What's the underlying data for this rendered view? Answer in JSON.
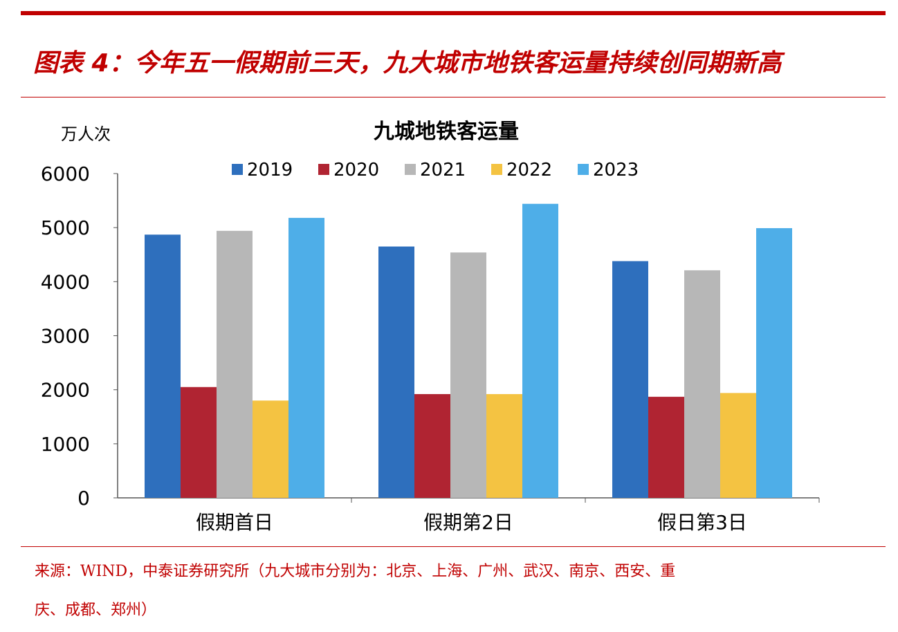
{
  "header": {
    "title": "图表 4：今年五一假期前三天，九大城市地铁客运量持续创同期新高"
  },
  "footer": {
    "line1": "来源：WIND，中泰证券研究所（九大城市分别为：北京、上海、广州、武汉、南京、西安、重",
    "line2": "庆、成都、郑州）"
  },
  "chart_data": {
    "type": "bar",
    "title": "九城地铁客运量",
    "ylabel": "万人次",
    "xlabel": "",
    "ylim": [
      0,
      6000
    ],
    "yticks": [
      0,
      1000,
      2000,
      3000,
      4000,
      5000,
      6000
    ],
    "categories": [
      "假期首日",
      "假期第2日",
      "假日第3日"
    ],
    "legend_position": "top",
    "grid": false,
    "series": [
      {
        "name": "2019",
        "color": "#2e6fbd",
        "values": [
          4870,
          4650,
          4380
        ]
      },
      {
        "name": "2020",
        "color": "#b02432",
        "values": [
          2050,
          1920,
          1870
        ]
      },
      {
        "name": "2021",
        "color": "#b7b7b7",
        "values": [
          4940,
          4540,
          4210
        ]
      },
      {
        "name": "2022",
        "color": "#f4c342",
        "values": [
          1800,
          1920,
          1940
        ]
      },
      {
        "name": "2023",
        "color": "#4eaee8",
        "values": [
          5180,
          5440,
          4990
        ]
      }
    ]
  }
}
